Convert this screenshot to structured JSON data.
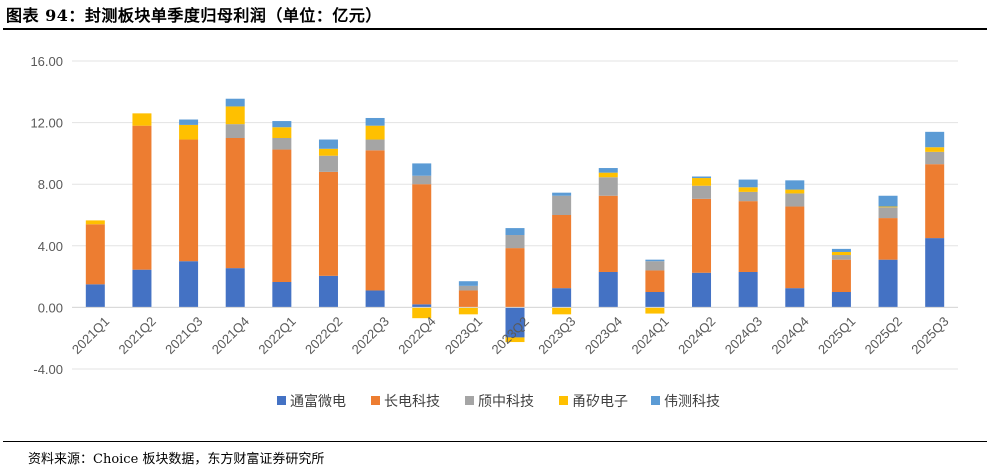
{
  "title": "图表 94：封测板块单季度归母利润（单位：亿元）",
  "source": "资料来源：Choice 板块数据，东方财富证券研究所",
  "chart_data": {
    "type": "bar",
    "stacked": true,
    "title": "封测板块单季度归母利润（单位：亿元）",
    "xlabel": "",
    "ylabel": "",
    "ylim": [
      -4,
      16
    ],
    "yticks": [
      -4,
      0,
      4,
      8,
      12,
      16
    ],
    "ytick_labels": [
      "-4.00",
      "0.00",
      "4.00",
      "8.00",
      "12.00",
      "16.00"
    ],
    "grid": true,
    "legend_position": "bottom",
    "categories": [
      "2021Q1",
      "2021Q2",
      "2021Q3",
      "2021Q4",
      "2022Q1",
      "2022Q2",
      "2022Q3",
      "2022Q4",
      "2023Q1",
      "2023Q2",
      "2023Q3",
      "2023Q4",
      "2024Q1",
      "2024Q2",
      "2024Q3",
      "2024Q4",
      "2025Q1",
      "2025Q2",
      "2025Q3"
    ],
    "series": [
      {
        "name": "通富微电",
        "color": "#4472C4",
        "values": [
          1.5,
          2.45,
          3.0,
          2.55,
          1.65,
          2.05,
          1.1,
          0.2,
          0.0,
          -1.95,
          1.25,
          2.3,
          1.0,
          2.25,
          2.3,
          1.25,
          1.0,
          3.1,
          4.5
        ]
      },
      {
        "name": "长电科技",
        "color": "#ED7D31",
        "values": [
          3.9,
          9.35,
          7.9,
          8.45,
          8.6,
          6.75,
          9.1,
          7.8,
          1.1,
          3.85,
          4.75,
          4.95,
          1.4,
          4.8,
          4.6,
          5.3,
          2.1,
          2.7,
          4.8
        ]
      },
      {
        "name": "颀中科技",
        "color": "#A5A5A5",
        "values": [
          0.0,
          0.0,
          0.0,
          0.9,
          0.75,
          1.05,
          0.7,
          0.55,
          0.3,
          0.85,
          1.25,
          1.2,
          0.6,
          0.85,
          0.6,
          0.85,
          0.3,
          0.7,
          0.8
        ]
      },
      {
        "name": "甬矽电子",
        "color": "#FFC000",
        "values": [
          0.25,
          0.8,
          0.95,
          1.15,
          0.7,
          0.45,
          0.9,
          -0.7,
          -0.45,
          -0.3,
          -0.45,
          0.3,
          -0.4,
          0.5,
          0.3,
          0.25,
          0.2,
          0.05,
          0.3
        ]
      },
      {
        "name": "伟测科技",
        "color": "#5B9BD5",
        "values": [
          0.0,
          0.0,
          0.35,
          0.5,
          0.4,
          0.6,
          0.5,
          0.8,
          0.3,
          0.45,
          0.2,
          0.3,
          0.1,
          0.1,
          0.5,
          0.6,
          0.2,
          0.7,
          1.0
        ]
      }
    ]
  }
}
